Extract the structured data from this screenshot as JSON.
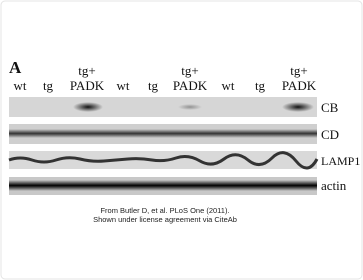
{
  "figure": {
    "panel": "A",
    "lanes": [
      {
        "label": "wt"
      },
      {
        "label": "tg"
      },
      {
        "label": [
          "tg+",
          "PADK"
        ]
      },
      {
        "label": "wt"
      },
      {
        "label": "tg"
      },
      {
        "label": [
          "tg+",
          "PADK"
        ]
      },
      {
        "label": "wt"
      },
      {
        "label": "tg"
      },
      {
        "label": [
          "tg+",
          "PADK"
        ]
      }
    ],
    "rows": [
      "CB",
      "CD",
      "LAMP1",
      "actin"
    ],
    "caption": [
      "From Butler D, et al. PLoS One (2011).",
      "Shown under license agreement via CiteAb"
    ]
  }
}
